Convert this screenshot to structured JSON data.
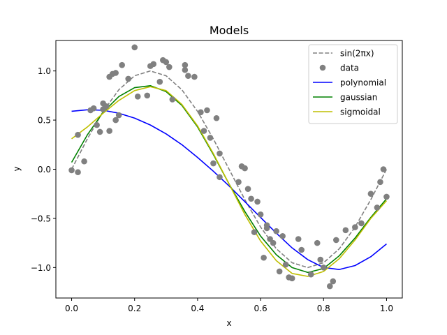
{
  "chart_data": {
    "type": "line",
    "title": "Models",
    "xlabel": "x",
    "ylabel": "y",
    "xlim": [
      -0.05,
      1.05
    ],
    "ylim": [
      -1.31,
      1.31
    ],
    "xticks": [
      0.0,
      0.2,
      0.4,
      0.6,
      0.8,
      1.0
    ],
    "xtick_labels": [
      "0.0",
      "0.2",
      "0.4",
      "0.6",
      "0.8",
      "1.0"
    ],
    "yticks": [
      -1.0,
      -0.5,
      0.0,
      0.5,
      1.0
    ],
    "ytick_labels": [
      "−1.0",
      "−0.5",
      "0.0",
      "0.5",
      "1.0"
    ],
    "grid": false,
    "legend_position": "top-right",
    "legend": [
      {
        "label": "sin(2πx)",
        "kind": "dashed-line",
        "color": "#808080"
      },
      {
        "label": "data",
        "kind": "marker",
        "color": "#808080"
      },
      {
        "label": "polynomial",
        "kind": "line",
        "color": "#0000ff"
      },
      {
        "label": "gaussian",
        "kind": "line",
        "color": "#008000"
      },
      {
        "label": "sigmoidal",
        "kind": "line",
        "color": "#bfbf00"
      }
    ],
    "series": [
      {
        "name": "sin(2πx)",
        "style": "dashed",
        "color": "#808080",
        "x": [
          0,
          0.05,
          0.1,
          0.15,
          0.2,
          0.25,
          0.3,
          0.35,
          0.4,
          0.45,
          0.5,
          0.55,
          0.6,
          0.65,
          0.7,
          0.75,
          0.8,
          0.85,
          0.9,
          0.95,
          1.0
        ],
        "y": [
          0,
          0.309,
          0.588,
          0.809,
          0.951,
          1.0,
          0.951,
          0.809,
          0.588,
          0.309,
          0,
          -0.309,
          -0.588,
          -0.809,
          -0.951,
          -1.0,
          -0.951,
          -0.809,
          -0.588,
          -0.309,
          0
        ]
      },
      {
        "name": "polynomial",
        "style": "solid",
        "color": "#0000ff",
        "x": [
          0,
          0.05,
          0.1,
          0.15,
          0.2,
          0.25,
          0.3,
          0.35,
          0.4,
          0.45,
          0.5,
          0.55,
          0.6,
          0.65,
          0.7,
          0.75,
          0.8,
          0.85,
          0.9,
          0.95,
          1.0
        ],
        "y": [
          0.59,
          0.605,
          0.6,
          0.57,
          0.52,
          0.45,
          0.36,
          0.25,
          0.12,
          -0.02,
          -0.17,
          -0.33,
          -0.49,
          -0.65,
          -0.8,
          -0.92,
          -1.0,
          -1.02,
          -0.98,
          -0.89,
          -0.76
        ]
      },
      {
        "name": "gaussian",
        "style": "solid",
        "color": "#008000",
        "x": [
          0,
          0.05,
          0.1,
          0.15,
          0.2,
          0.25,
          0.3,
          0.35,
          0.4,
          0.45,
          0.5,
          0.55,
          0.6,
          0.65,
          0.7,
          0.75,
          0.8,
          0.85,
          0.9,
          0.95,
          1.0
        ],
        "y": [
          0.07,
          0.35,
          0.58,
          0.74,
          0.83,
          0.85,
          0.79,
          0.65,
          0.43,
          0.15,
          -0.15,
          -0.43,
          -0.68,
          -0.87,
          -1.0,
          -1.05,
          -1.01,
          -0.88,
          -0.7,
          -0.49,
          -0.3
        ]
      },
      {
        "name": "sigmoidal",
        "style": "solid",
        "color": "#bfbf00",
        "x": [
          0,
          0.05,
          0.1,
          0.15,
          0.2,
          0.25,
          0.3,
          0.35,
          0.4,
          0.45,
          0.5,
          0.55,
          0.6,
          0.65,
          0.7,
          0.75,
          0.8,
          0.85,
          0.9,
          0.95,
          1.0
        ],
        "y": [
          0.31,
          0.43,
          0.57,
          0.7,
          0.8,
          0.84,
          0.8,
          0.66,
          0.44,
          0.16,
          -0.15,
          -0.46,
          -0.73,
          -0.93,
          -1.06,
          -1.09,
          -1.04,
          -0.91,
          -0.72,
          -0.5,
          -0.32
        ]
      },
      {
        "name": "data",
        "style": "marker",
        "color": "#808080",
        "x": [
          0.0,
          0.02,
          0.02,
          0.04,
          0.06,
          0.07,
          0.08,
          0.09,
          0.1,
          0.1,
          0.11,
          0.12,
          0.12,
          0.13,
          0.14,
          0.14,
          0.15,
          0.16,
          0.18,
          0.2,
          0.21,
          0.24,
          0.25,
          0.26,
          0.28,
          0.29,
          0.3,
          0.31,
          0.32,
          0.36,
          0.36,
          0.37,
          0.39,
          0.41,
          0.42,
          0.43,
          0.44,
          0.45,
          0.46,
          0.47,
          0.47,
          0.53,
          0.54,
          0.55,
          0.56,
          0.57,
          0.58,
          0.59,
          0.6,
          0.61,
          0.62,
          0.62,
          0.63,
          0.64,
          0.65,
          0.66,
          0.67,
          0.68,
          0.69,
          0.7,
          0.72,
          0.73,
          0.76,
          0.78,
          0.79,
          0.8,
          0.82,
          0.83,
          0.84,
          0.87,
          0.9,
          0.92,
          0.95,
          0.97,
          0.98,
          0.99,
          1.0
        ],
        "y": [
          -0.01,
          -0.03,
          0.35,
          0.08,
          0.6,
          0.62,
          0.45,
          0.38,
          0.61,
          0.67,
          0.64,
          0.39,
          0.94,
          0.97,
          0.98,
          0.5,
          0.55,
          1.06,
          0.92,
          1.24,
          0.74,
          0.75,
          1.05,
          1.07,
          0.89,
          1.11,
          1.09,
          1.04,
          0.71,
          1.01,
          1.06,
          0.95,
          0.94,
          0.58,
          0.39,
          0.6,
          0.32,
          0.06,
          0.52,
          0.16,
          -0.08,
          -0.13,
          0.03,
          0.01,
          -0.2,
          -0.3,
          -0.64,
          -0.33,
          -0.46,
          -0.9,
          -0.57,
          -0.6,
          -0.71,
          -0.75,
          -0.63,
          -1.04,
          -0.68,
          -0.97,
          -1.1,
          -1.11,
          -0.71,
          -0.82,
          -1.07,
          -0.75,
          -0.92,
          -1.0,
          -1.19,
          -1.14,
          -0.72,
          -0.62,
          -0.59,
          -0.55,
          -0.25,
          -0.39,
          -0.13,
          0.0,
          -0.28
        ]
      }
    ]
  }
}
